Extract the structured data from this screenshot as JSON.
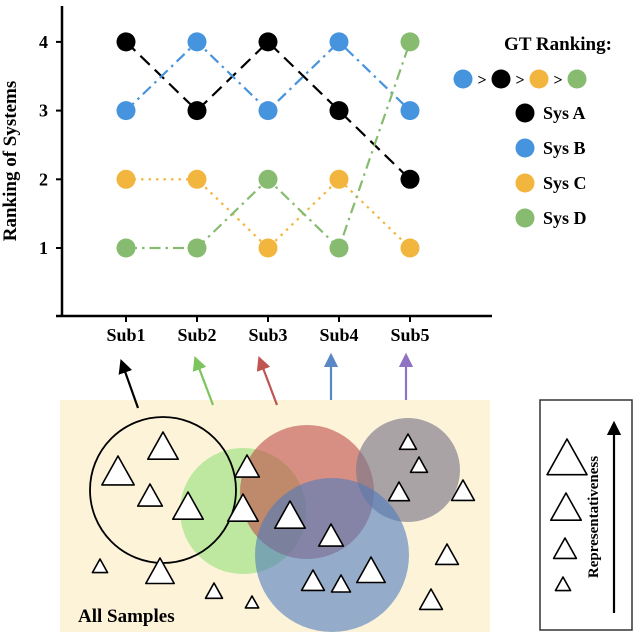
{
  "chart_data": {
    "type": "line",
    "title": "",
    "xlabel": "",
    "ylabel": "Ranking of Systems",
    "categories": [
      "Sub1",
      "Sub2",
      "Sub3",
      "Sub4",
      "Sub5"
    ],
    "yticks": [
      "4",
      "3",
      "2",
      "1"
    ],
    "ytick_values": [
      4,
      3,
      2,
      1
    ],
    "ylim": [
      0.5,
      4.5
    ],
    "grid": false,
    "legend_position": "right",
    "series": [
      {
        "name": "Sys A",
        "color": "#000000",
        "linestyle": "dashed",
        "values": [
          4,
          3,
          4,
          3,
          2
        ]
      },
      {
        "name": "Sys B",
        "color": "#4594dd",
        "linestyle": "dashdot",
        "values": [
          3,
          4,
          3,
          4,
          3
        ]
      },
      {
        "name": "Sys C",
        "color": "#f2b53d",
        "linestyle": "dotted",
        "values": [
          2,
          2,
          1,
          2,
          1
        ]
      },
      {
        "name": "Sys D",
        "color": "#86bb70",
        "linestyle": "dashdot",
        "values": [
          1,
          1,
          2,
          1,
          4
        ]
      }
    ],
    "gt_ranking": {
      "label": "GT Ranking:",
      "separator": ">",
      "order": [
        "Sys B",
        "Sys A",
        "Sys C",
        "Sys D"
      ]
    }
  },
  "diagram": {
    "all_samples_label": "All Samples",
    "background_color": "#fcf3d9",
    "subsets": [
      {
        "label": "Sub1",
        "fill": "none",
        "stroke": "#000000",
        "arrow_color": "#000000"
      },
      {
        "label": "Sub2",
        "fill": "#8ade70",
        "stroke": "none",
        "arrow_color": "#7cc45e"
      },
      {
        "label": "Sub3",
        "fill": "#c0504d",
        "stroke": "none",
        "arrow_color": "#bf5552"
      },
      {
        "label": "Sub4",
        "fill": "#4f7cbe",
        "stroke": "none",
        "arrow_color": "#5a87c5"
      },
      {
        "label": "Sub5",
        "fill": "#7d7888",
        "stroke": "none",
        "arrow_color": "#8f72c4"
      }
    ],
    "representativeness": {
      "label": "Representativeness"
    }
  }
}
